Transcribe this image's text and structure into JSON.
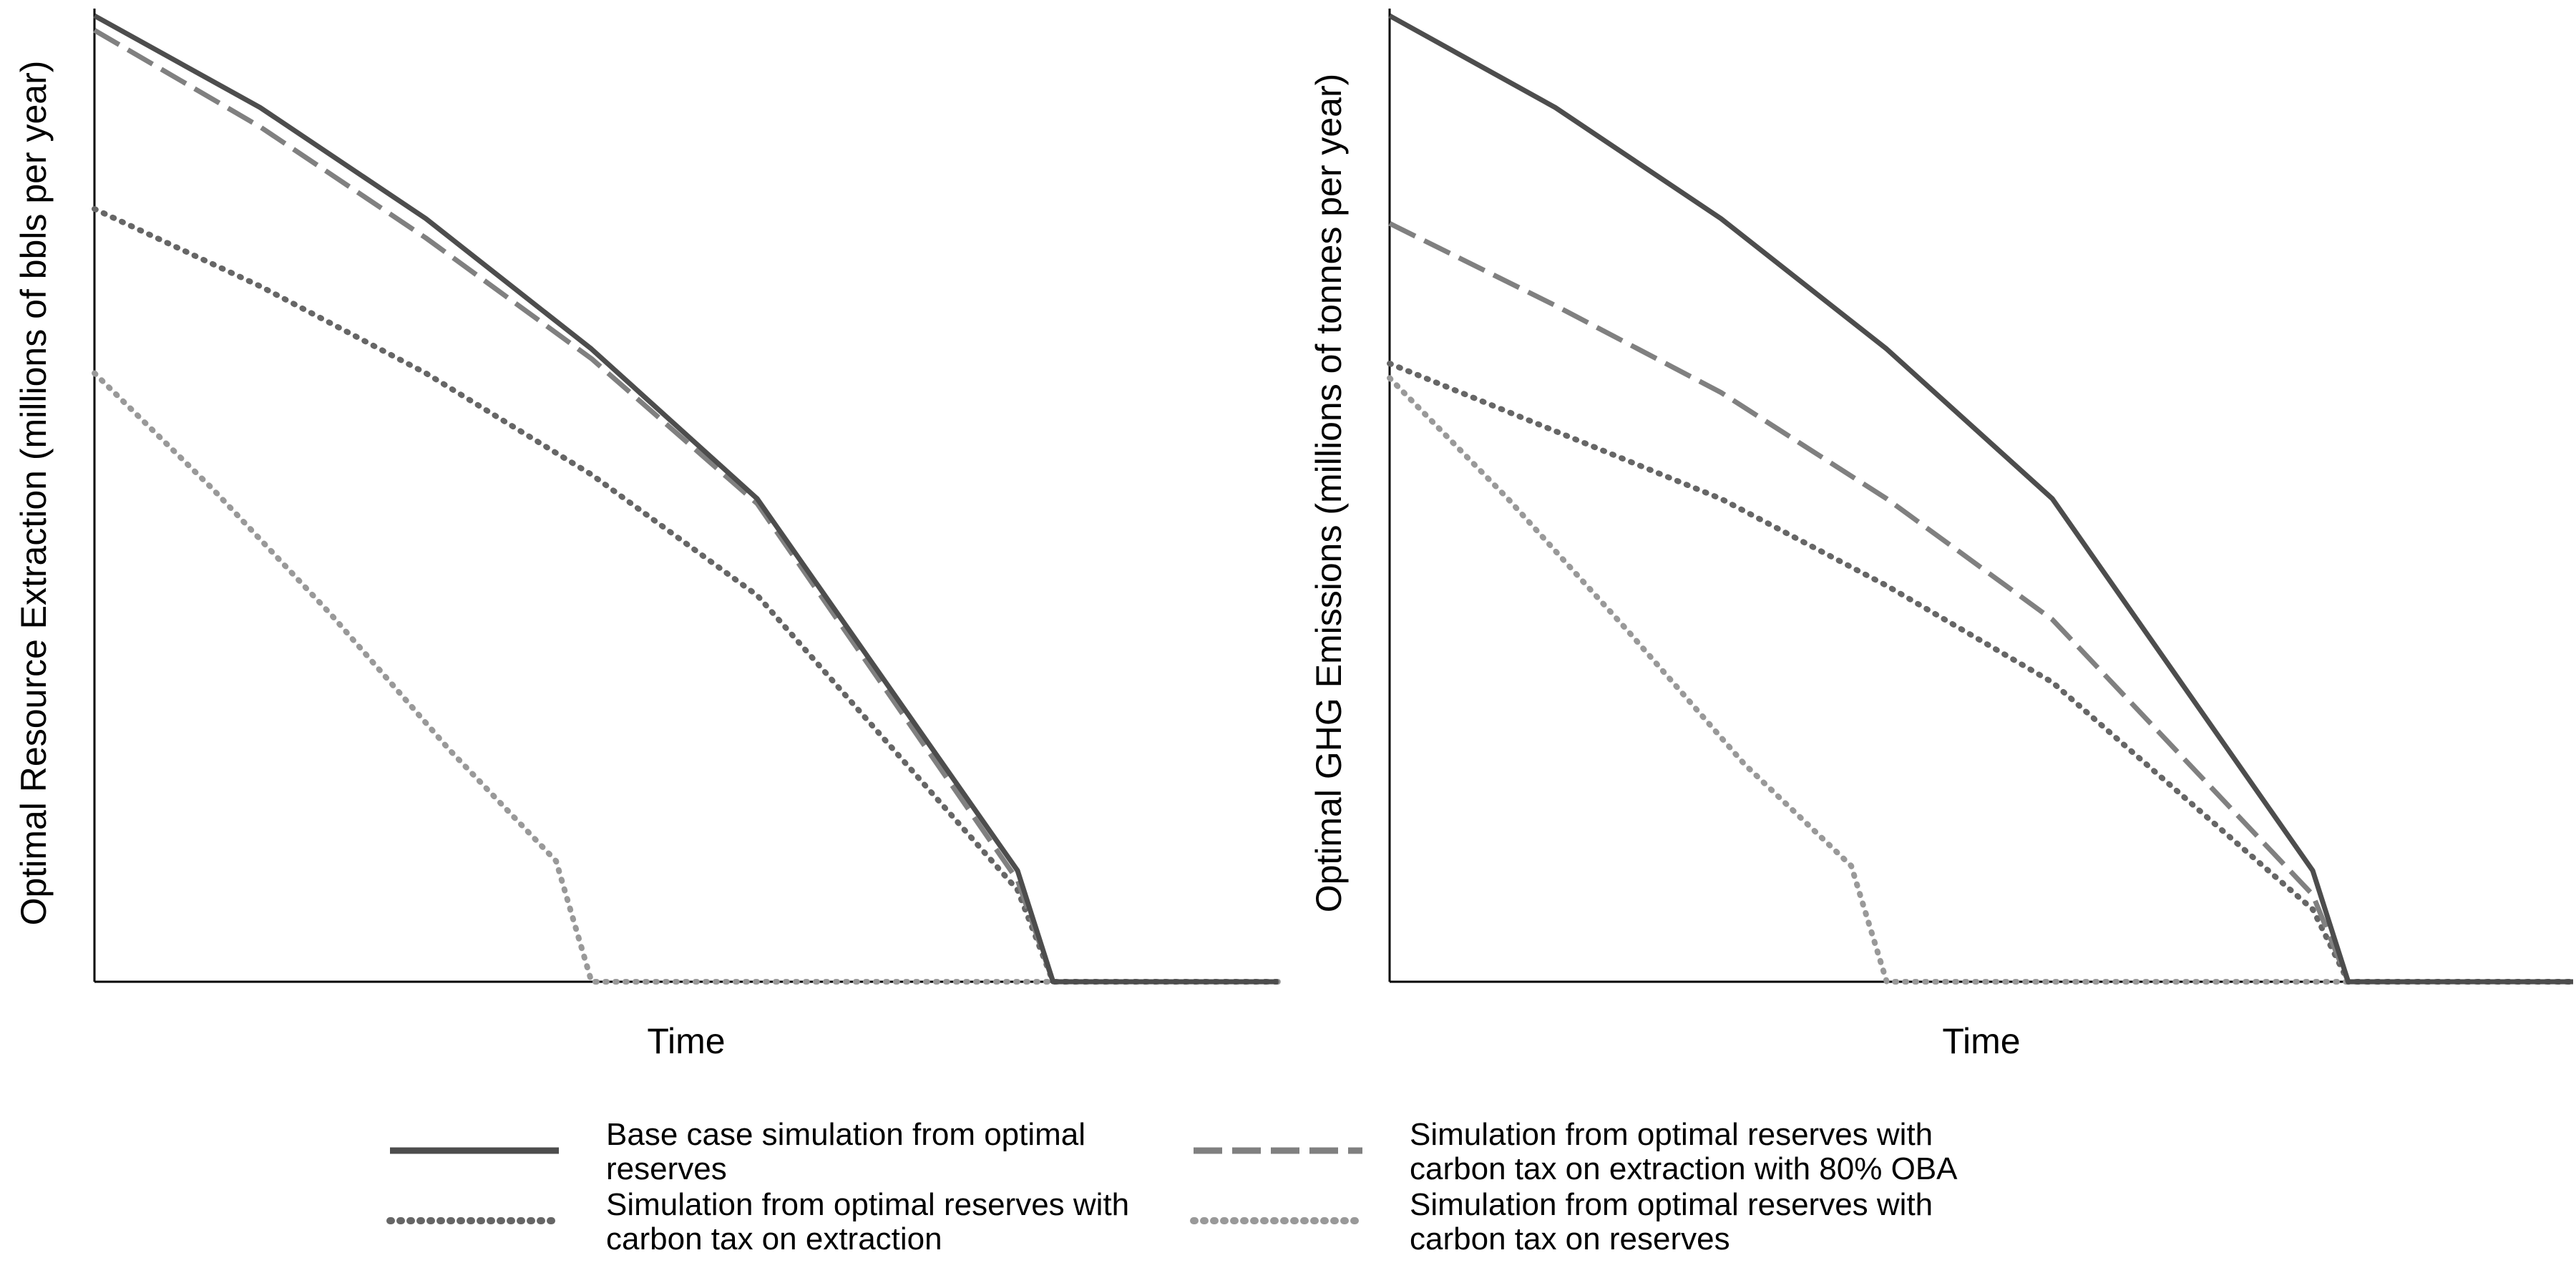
{
  "chart_data": [
    {
      "type": "line",
      "xlabel": "Time",
      "ylabel": "Optimal Resource Extraction (millions of bbls per year)",
      "ylim": [
        0,
        1
      ],
      "grid": false,
      "series": [
        {
          "key": "base",
          "x": [
            0,
            0.14,
            0.28,
            0.42,
            0.56,
            0.78,
            0.81,
            1.0
          ],
          "values": [
            1.0,
            0.905,
            0.79,
            0.655,
            0.5,
            0.115,
            0.0,
            0.0
          ]
        },
        {
          "key": "oba",
          "x": [
            0,
            0.14,
            0.28,
            0.42,
            0.56,
            0.78,
            0.81,
            1.0
          ],
          "values": [
            0.985,
            0.885,
            0.77,
            0.645,
            0.495,
            0.105,
            0.0,
            0.0
          ]
        },
        {
          "key": "extraction",
          "x": [
            0,
            0.14,
            0.28,
            0.42,
            0.56,
            0.78,
            0.81,
            1.0
          ],
          "values": [
            0.8,
            0.72,
            0.63,
            0.525,
            0.4,
            0.095,
            0.0,
            0.0
          ]
        },
        {
          "key": "reserves",
          "x": [
            0,
            0.1,
            0.2,
            0.3,
            0.39,
            0.42,
            1.0
          ],
          "values": [
            0.63,
            0.51,
            0.38,
            0.24,
            0.125,
            0.0,
            0.0
          ]
        }
      ]
    },
    {
      "type": "line",
      "xlabel": "Time",
      "ylabel": "Optimal GHG Emissions (millions of tonnes per year)",
      "ylim": [
        0,
        1
      ],
      "grid": false,
      "series": [
        {
          "key": "base",
          "x": [
            0,
            0.14,
            0.28,
            0.42,
            0.56,
            0.78,
            0.81,
            1.0
          ],
          "values": [
            1.0,
            0.905,
            0.79,
            0.655,
            0.5,
            0.115,
            0.0,
            0.0
          ]
        },
        {
          "key": "oba",
          "x": [
            0,
            0.14,
            0.28,
            0.42,
            0.56,
            0.78,
            0.81,
            1.0
          ],
          "values": [
            0.785,
            0.7,
            0.61,
            0.5,
            0.375,
            0.09,
            0.0,
            0.0
          ]
        },
        {
          "key": "extraction",
          "x": [
            0,
            0.14,
            0.28,
            0.42,
            0.56,
            0.78,
            0.81,
            1.0
          ],
          "values": [
            0.64,
            0.57,
            0.5,
            0.41,
            0.31,
            0.075,
            0.0,
            0.0
          ]
        },
        {
          "key": "reserves",
          "x": [
            0,
            0.1,
            0.2,
            0.3,
            0.39,
            0.42,
            1.0
          ],
          "values": [
            0.625,
            0.5,
            0.365,
            0.225,
            0.12,
            0.0,
            0.0
          ]
        }
      ]
    }
  ],
  "legend": {
    "placement": "bottom",
    "items": [
      {
        "key": "base",
        "lines": [
          "Base case simulation from optimal",
          "reserves"
        ]
      },
      {
        "key": "oba",
        "lines": [
          "Simulation from optimal reserves with",
          "carbon tax on extraction with 80% OBA"
        ]
      },
      {
        "key": "extraction",
        "lines": [
          "Simulation from optimal reserves with",
          "carbon tax on extraction"
        ]
      },
      {
        "key": "reserves",
        "lines": [
          "Simulation from optimal reserves with",
          "carbon tax on reserves"
        ]
      }
    ]
  },
  "styles": {
    "base": {
      "color": "#4d4d4d",
      "dash": "solid"
    },
    "oba": {
      "color": "#808080",
      "dash": "long-dash"
    },
    "extraction": {
      "color": "#666666",
      "dash": "dotted"
    },
    "reserves": {
      "color": "#999999",
      "dash": "dotted"
    }
  }
}
